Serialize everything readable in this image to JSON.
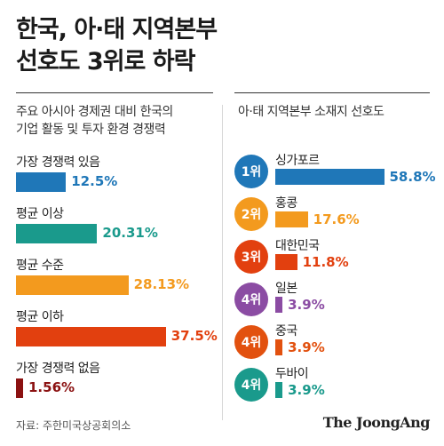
{
  "title": {
    "line1": "한국, 아·태 지역본부",
    "line2": "선호도 3위로 하락"
  },
  "chart_data": [
    {
      "type": "bar",
      "title": "주요 아시아 경제권 대비 한국의 기업 활동 및 투자 환경 경쟁력",
      "title_lines": [
        "주요 아시아 경제권 대비 한국의",
        "기업 활동 및 투자 환경 경쟁력"
      ],
      "unit": "%",
      "orientation": "horizontal",
      "categories": [
        "가장 경쟁력 있음",
        "평균 이상",
        "평균 수준",
        "평균 이하",
        "가장 경쟁력 없음"
      ],
      "values": [
        12.5,
        20.31,
        28.13,
        37.5,
        1.56
      ],
      "value_labels": [
        "12.5%",
        "20.31%",
        "28.13%",
        "37.5%",
        "1.56%"
      ],
      "colors": [
        "#1f77b8",
        "#1a9a8c",
        "#f39a1e",
        "#e2400f",
        "#8b1111"
      ]
    },
    {
      "type": "bar",
      "title": "아·태 지역본부 소재지 선호도",
      "unit": "%",
      "orientation": "horizontal",
      "ranks": [
        "1위",
        "2위",
        "3위",
        "4위",
        "4위",
        "4위"
      ],
      "categories": [
        "싱가포르",
        "홍콩",
        "대한민국",
        "일본",
        "중국",
        "두바이"
      ],
      "values": [
        58.8,
        17.6,
        11.8,
        3.9,
        3.9,
        3.9
      ],
      "value_labels": [
        "58.8%",
        "17.6%",
        "11.8%",
        "3.9%",
        "3.9%",
        "3.9%"
      ],
      "colors": [
        "#1f77b8",
        "#f39a1e",
        "#e2400f",
        "#8b4ca3",
        "#e2510f",
        "#1a9a8c"
      ]
    }
  ],
  "source": "자료: 주한미국상공회의소",
  "logo": "The JoongAng"
}
